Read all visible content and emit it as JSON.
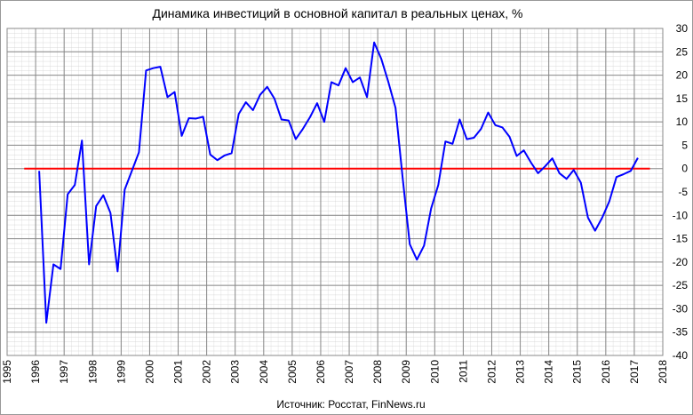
{
  "chart_data": {
    "type": "line",
    "title": "Динамика  инвестиций  в основной  капитал  в реальных  ценах,  %",
    "source": "Источник: Росстат, FinNews.ru",
    "x": [
      1996.125,
      1996.375,
      1996.625,
      1996.875,
      1997.125,
      1997.375,
      1997.625,
      1997.875,
      1998.125,
      1998.375,
      1998.625,
      1998.875,
      1999.125,
      1999.375,
      1999.625,
      1999.875,
      2000.125,
      2000.375,
      2000.625,
      2000.875,
      2001.125,
      2001.375,
      2001.625,
      2001.875,
      2002.125,
      2002.375,
      2002.625,
      2002.875,
      2003.125,
      2003.375,
      2003.625,
      2003.875,
      2004.125,
      2004.375,
      2004.625,
      2004.875,
      2005.125,
      2005.375,
      2005.625,
      2005.875,
      2006.125,
      2006.375,
      2006.625,
      2006.875,
      2007.125,
      2007.375,
      2007.625,
      2007.875,
      2008.125,
      2008.375,
      2008.625,
      2008.875,
      2009.125,
      2009.375,
      2009.625,
      2009.875,
      2010.125,
      2010.375,
      2010.625,
      2010.875,
      2011.125,
      2011.375,
      2011.625,
      2011.875,
      2012.125,
      2012.375,
      2012.625,
      2012.875,
      2013.125,
      2013.375,
      2013.625,
      2013.875,
      2014.125,
      2014.375,
      2014.625,
      2014.875,
      2015.125,
      2015.375,
      2015.625,
      2015.875,
      2016.125,
      2016.375,
      2016.625,
      2016.875,
      2017.125
    ],
    "series": [
      {
        "color": "#0000ff",
        "values": [
          -0.5,
          -33,
          -20.5,
          -21.5,
          -5.5,
          -3.5,
          6,
          -20.5,
          -8,
          -5.7,
          -9.5,
          -22,
          -4.5,
          -0.5,
          3.5,
          21,
          21.5,
          21.8,
          15.3,
          16.4,
          7,
          10.8,
          10.7,
          11.1,
          3,
          1.8,
          2.8,
          3.3,
          11.7,
          14.2,
          12.5,
          15.8,
          17.5,
          15,
          10.5,
          10.3,
          6.3,
          8.5,
          11,
          14,
          10,
          18.5,
          17.8,
          21.5,
          18.5,
          19.5,
          15.3,
          27,
          23.5,
          18.5,
          13,
          -2,
          -16.2,
          -19.5,
          -16.5,
          -8.5,
          -3.5,
          5.8,
          5.3,
          10.5,
          6.3,
          6.6,
          8.5,
          12,
          9.3,
          8.8,
          6.8,
          2.7,
          3.9,
          1.3,
          -1,
          0.5,
          2.2,
          -1,
          -2.2,
          -0.3,
          -3,
          -10.5,
          -13.3,
          -10.5,
          -7,
          -1.8,
          -1.2,
          -0.5,
          2.3
        ]
      }
    ],
    "reference_line": {
      "y": 0,
      "x": [
        1995.6,
        2017.55
      ],
      "color": "#ff0000"
    },
    "xlim": [
      1995,
      2018
    ],
    "xticks": [
      1995,
      1996,
      1997,
      1998,
      1999,
      2000,
      2001,
      2002,
      2003,
      2004,
      2005,
      2006,
      2007,
      2008,
      2009,
      2010,
      2011,
      2012,
      2013,
      2014,
      2015,
      2016,
      2017,
      2018
    ],
    "ylim": [
      -40,
      30
    ],
    "yticks": [
      30,
      25,
      20,
      15,
      10,
      5,
      0,
      -5,
      -10,
      -15,
      -20,
      -25,
      -30,
      -35,
      -40
    ],
    "grid": true
  }
}
